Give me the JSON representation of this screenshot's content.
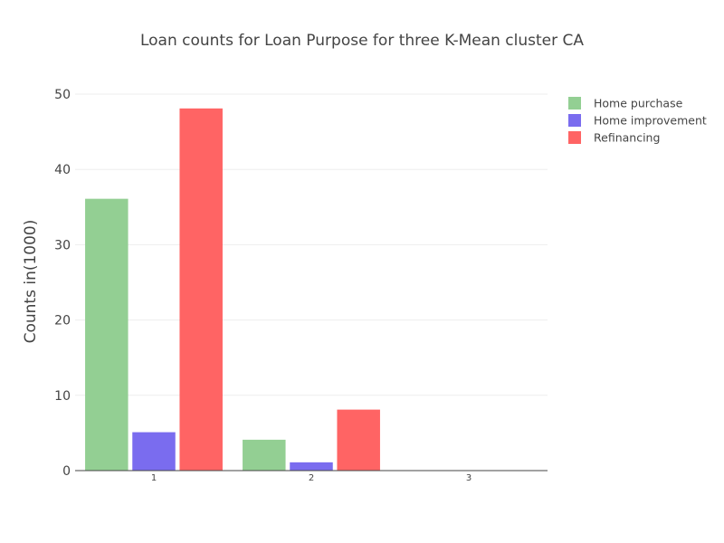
{
  "chart_data": {
    "type": "bar",
    "title": "Loan counts for Loan Purpose for three K-Mean cluster CA",
    "xlabel": "",
    "ylabel": "Counts in(1000)",
    "categories": [
      "1",
      "2",
      "3"
    ],
    "series": [
      {
        "name": "Home purchase",
        "values": [
          36.1,
          4.1,
          0
        ],
        "color": "#93cf93"
      },
      {
        "name": "Home improvement",
        "values": [
          5.1,
          1.1,
          0
        ],
        "color": "#7a6cef"
      },
      {
        "name": "Refinancing",
        "values": [
          48.1,
          8.1,
          0
        ],
        "color": "#ff6464"
      }
    ],
    "ylim": [
      0,
      50
    ],
    "yticks": [
      "0",
      "10",
      "20",
      "30",
      "40",
      "50"
    ],
    "grid": true,
    "legend_position": "top-right"
  }
}
